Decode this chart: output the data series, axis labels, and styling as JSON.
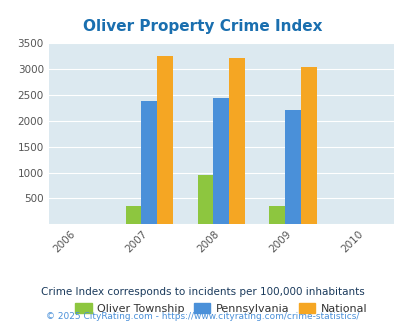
{
  "title": "Oliver Property Crime Index",
  "title_color": "#1a6faf",
  "years": [
    2006,
    2007,
    2008,
    2009,
    2010
  ],
  "data_years": [
    2007,
    2008,
    2009
  ],
  "oliver": [
    350,
    950,
    360
  ],
  "pennsylvania": [
    2375,
    2435,
    2205
  ],
  "national": [
    3255,
    3205,
    3035
  ],
  "oliver_color": "#8dc63f",
  "pennsylvania_color": "#4a90d9",
  "national_color": "#f5a623",
  "bg_color": "#dce9f0",
  "ylim": [
    0,
    3500
  ],
  "yticks": [
    0,
    500,
    1000,
    1500,
    2000,
    2500,
    3000,
    3500
  ],
  "legend_labels": [
    "Oliver Township",
    "Pennsylvania",
    "National"
  ],
  "footnote": "Crime Index corresponds to incidents per 100,000 inhabitants",
  "copyright": "© 2025 CityRating.com - https://www.cityrating.com/crime-statistics/",
  "footnote_color": "#1a3a5c",
  "copyright_color": "#4a90d9",
  "bar_width": 0.22,
  "xlim": [
    2005.6,
    2010.4
  ]
}
